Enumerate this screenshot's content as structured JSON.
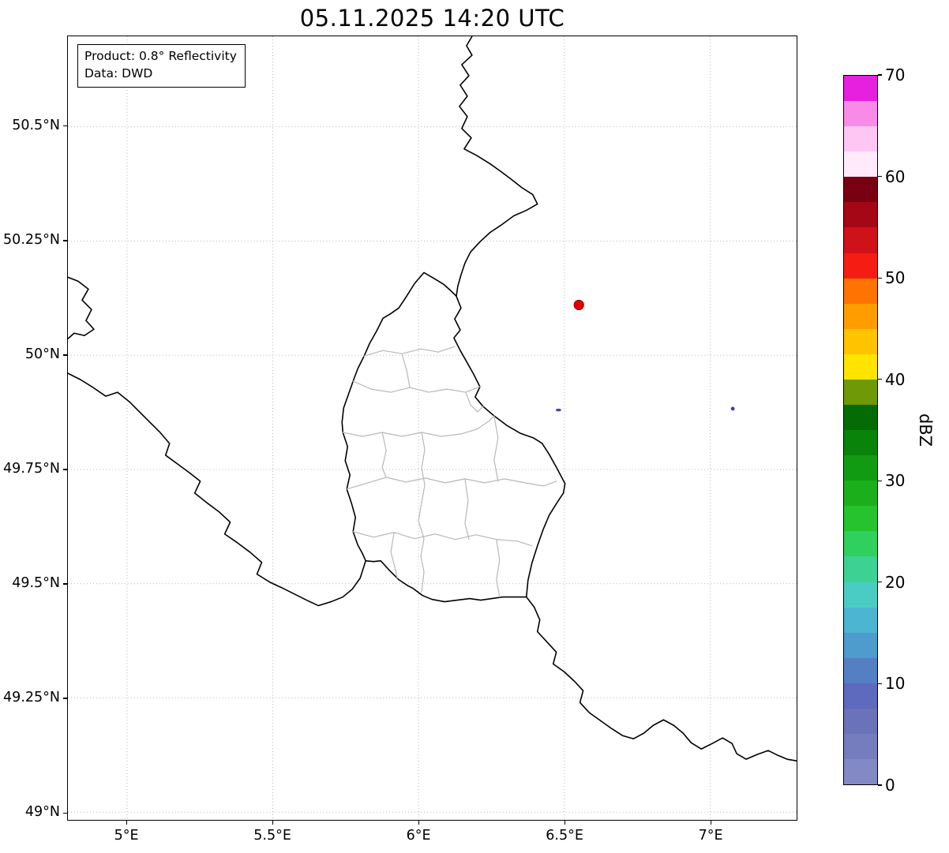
{
  "title": "05.11.2025 14:20 UTC",
  "infobox": {
    "line1": "Product: 0.8° Reflectivity",
    "line2": "Data: DWD"
  },
  "axes": {
    "extent": {
      "lon_min": 4.797,
      "lon_max": 7.297,
      "lat_min": 48.983,
      "lat_max": 50.698
    },
    "x_ticks": [
      {
        "value": 5.0,
        "label": "5°E"
      },
      {
        "value": 5.5,
        "label": "5.5°E"
      },
      {
        "value": 6.0,
        "label": "6°E"
      },
      {
        "value": 6.5,
        "label": "6.5°E"
      },
      {
        "value": 7.0,
        "label": "7°E"
      }
    ],
    "y_ticks": [
      {
        "value": 50.5,
        "label": "50.5°N"
      },
      {
        "value": 50.25,
        "label": "50.25°N"
      },
      {
        "value": 50.0,
        "label": "50°N"
      },
      {
        "value": 49.75,
        "label": "49.75°N"
      },
      {
        "value": 49.5,
        "label": "49.5°N"
      },
      {
        "value": 49.25,
        "label": "49.25°N"
      },
      {
        "value": 49.0,
        "label": "49°N"
      }
    ],
    "grid": "dotted"
  },
  "map": {
    "radar_marker": {
      "lon": 6.55,
      "lat": 50.11,
      "r": 6,
      "color": "#e50000",
      "edge": "#a00000"
    },
    "echoes": [
      {
        "lon": 6.48,
        "lat": 49.88,
        "rx": 3.5,
        "ry": 1.8,
        "color": "#4646aa"
      },
      {
        "lon": 7.078,
        "lat": 49.883,
        "rx": 2.4,
        "ry": 2.4,
        "color": "#3b3bb4"
      }
    ]
  },
  "colorbar": {
    "label": "dBZ",
    "min": 0,
    "max": 70,
    "ticks": [
      0,
      10,
      20,
      30,
      40,
      50,
      60,
      70
    ],
    "band_size": 2.5,
    "colors_bottom_to_top": [
      "#8289c4",
      "#767dbe",
      "#6a72ba",
      "#5e6abd",
      "#5480c3",
      "#4e9bcd",
      "#4cb5d1",
      "#4bccc3",
      "#3dd294",
      "#2fd05b",
      "#25c32e",
      "#1bb01b",
      "#119b11",
      "#0a830a",
      "#056c05",
      "#6f9906",
      "#ffe400",
      "#ffc300",
      "#ff9d00",
      "#ff7300",
      "#f51d13",
      "#cf1119",
      "#a50717",
      "#790011",
      "#feeafb",
      "#fec6f3",
      "#f98be8",
      "#e71fdf"
    ]
  }
}
